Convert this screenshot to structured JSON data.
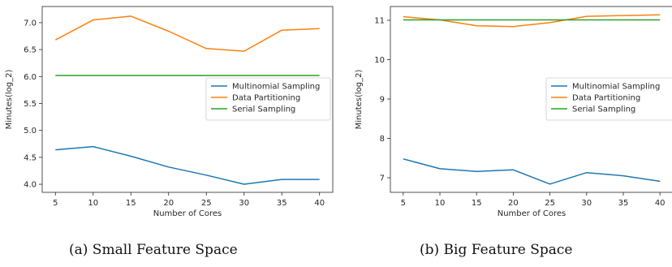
{
  "colors": {
    "multinomial": "#1f77b4",
    "partition": "#ff7f0e",
    "serial": "#2ca02c",
    "axis": "#262626",
    "legend_border": "#cccccc"
  },
  "chart_data": [
    {
      "type": "line",
      "caption": "(a) Small Feature Space",
      "xlabel": "Number of Cores",
      "ylabel": "Minutes(log_2)",
      "x": [
        5,
        10,
        15,
        20,
        25,
        30,
        35,
        40
      ],
      "xlim": [
        3.25,
        41.75
      ],
      "ylim": [
        3.85,
        7.3
      ],
      "xticks": [
        5,
        10,
        15,
        20,
        25,
        30,
        35,
        40
      ],
      "yticks": [
        4.0,
        4.5,
        5.0,
        5.5,
        6.0,
        6.5,
        7.0
      ],
      "ytick_labels": [
        "4.0",
        "4.5",
        "5.0",
        "5.5",
        "6.0",
        "6.5",
        "7.0"
      ],
      "grid": false,
      "legend_placement": "center-right",
      "series": [
        {
          "name": "Multinomial Sampling",
          "color": "#1f77b4",
          "values": [
            4.64,
            4.7,
            4.52,
            4.32,
            4.17,
            4.0,
            4.09,
            4.09
          ]
        },
        {
          "name": "Data Partitioning",
          "color": "#ff7f0e",
          "values": [
            6.68,
            7.05,
            7.12,
            6.84,
            6.52,
            6.47,
            6.86,
            6.89
          ]
        },
        {
          "name": "Serial Sampling",
          "color": "#2ca02c",
          "values": [
            6.02,
            6.02,
            6.02,
            6.02,
            6.02,
            6.02,
            6.02,
            6.02
          ]
        }
      ]
    },
    {
      "type": "line",
      "caption": "(b) Big Feature Space",
      "xlabel": "Number of Cores",
      "ylabel": "Minutes(log_2)",
      "x": [
        5,
        10,
        15,
        20,
        25,
        30,
        35,
        40
      ],
      "xlim": [
        3.25,
        41.75
      ],
      "ylim": [
        6.63,
        11.35
      ],
      "xticks": [
        5,
        10,
        15,
        20,
        25,
        30,
        35,
        40
      ],
      "yticks": [
        7,
        8,
        9,
        10,
        11
      ],
      "ytick_labels": [
        "7",
        "8",
        "9",
        "10",
        "11"
      ],
      "grid": false,
      "legend_placement": "center-right",
      "series": [
        {
          "name": "Multinomial Sampling",
          "color": "#1f77b4",
          "values": [
            7.48,
            7.23,
            7.16,
            7.2,
            6.84,
            7.13,
            7.05,
            6.91
          ]
        },
        {
          "name": "Data Partitioning",
          "color": "#ff7f0e",
          "values": [
            11.09,
            11.01,
            10.86,
            10.84,
            10.94,
            11.1,
            11.12,
            11.14
          ]
        },
        {
          "name": "Serial Sampling",
          "color": "#2ca02c",
          "values": [
            11.01,
            11.01,
            11.01,
            11.01,
            11.01,
            11.01,
            11.01,
            11.01
          ]
        }
      ]
    }
  ]
}
